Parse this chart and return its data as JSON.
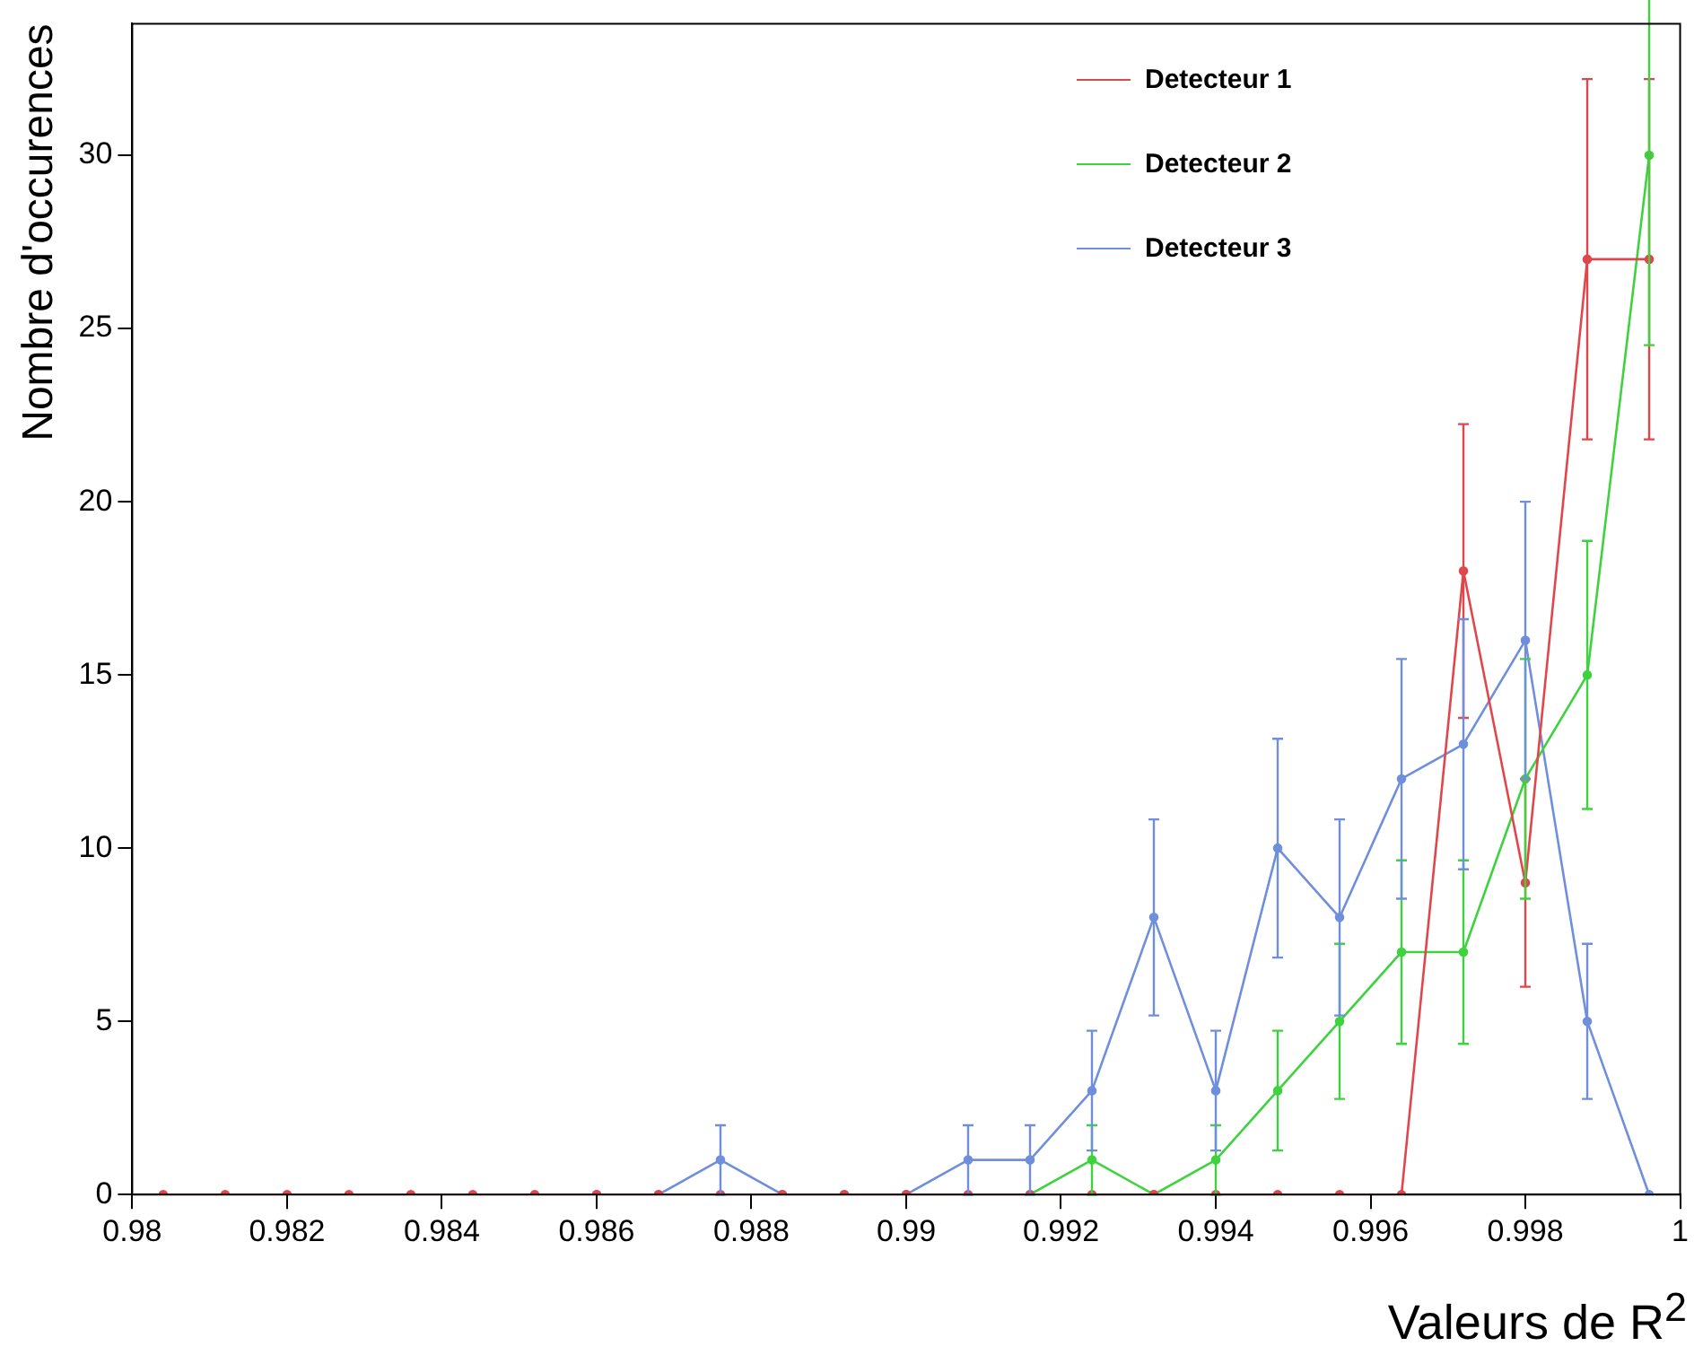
{
  "chart_data": {
    "type": "line",
    "xlabel": "Valeurs de R$^{2}$",
    "ylabel": "Nombre d'occurences",
    "x": [
      0.9804,
      0.9812,
      0.982,
      0.9828,
      0.9836,
      0.9844,
      0.9852,
      0.986,
      0.9868,
      0.9876,
      0.9884,
      0.9892,
      0.99,
      0.9908,
      0.9916,
      0.9924,
      0.9932,
      0.994,
      0.9948,
      0.9956,
      0.9964,
      0.9972,
      0.998,
      0.9988,
      0.9996
    ],
    "series": [
      {
        "name": "Detecteur 1",
        "color": "#e0474c",
        "values": [
          0,
          0,
          0,
          0,
          0,
          0,
          0,
          0,
          0,
          0,
          0,
          0,
          0,
          0,
          0,
          0,
          0,
          0,
          0,
          0,
          0,
          18,
          9,
          27,
          27
        ],
        "errors": [
          null,
          null,
          null,
          null,
          null,
          null,
          null,
          null,
          null,
          null,
          null,
          null,
          null,
          null,
          null,
          null,
          null,
          null,
          null,
          null,
          null,
          4.24,
          3,
          5.2,
          5.2
        ]
      },
      {
        "name": "Detecteur 2",
        "color": "#3fd23f",
        "values": [
          null,
          null,
          null,
          null,
          null,
          null,
          null,
          null,
          null,
          null,
          null,
          null,
          null,
          null,
          0,
          1,
          0,
          1,
          3,
          5,
          7,
          7,
          12,
          15,
          30
        ],
        "errors": [
          null,
          null,
          null,
          null,
          null,
          null,
          null,
          null,
          null,
          null,
          null,
          null,
          null,
          null,
          null,
          1,
          null,
          1,
          1.73,
          2.24,
          2.65,
          2.65,
          3.46,
          3.87,
          5.48
        ]
      },
      {
        "name": "Detecteur 3",
        "color": "#6f8fdc",
        "values": [
          null,
          null,
          null,
          null,
          null,
          null,
          null,
          0,
          0,
          1,
          0,
          0,
          0,
          1,
          1,
          3,
          8,
          3,
          10,
          8,
          12,
          13,
          16,
          5,
          0
        ],
        "errors": [
          null,
          null,
          null,
          null,
          null,
          null,
          null,
          null,
          null,
          1,
          null,
          null,
          null,
          1,
          1,
          1.73,
          2.83,
          1.73,
          3.16,
          2.83,
          3.46,
          3.61,
          4,
          2.24,
          null
        ]
      }
    ],
    "xlim": [
      0.98,
      1
    ],
    "xticks": [
      0.98,
      0.982,
      0.984,
      0.986,
      0.988,
      0.99,
      0.992,
      0.994,
      0.996,
      0.998,
      1
    ],
    "ylim": [
      0,
      33.8
    ],
    "yticks": [
      0,
      5,
      10,
      15,
      20,
      25,
      30
    ],
    "grid": false,
    "legend": "top right",
    "marker": "circle",
    "line_style": "solid"
  }
}
